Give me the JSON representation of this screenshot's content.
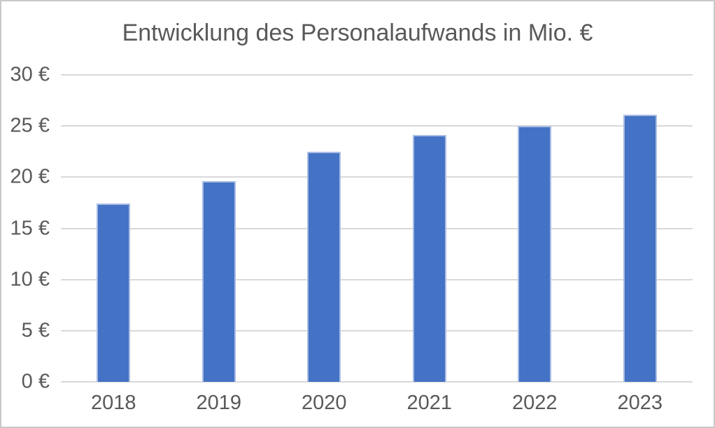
{
  "chart_data": {
    "type": "bar",
    "title": "Entwicklung des Personalaufwands in Mio. €",
    "categories": [
      "2018",
      "2019",
      "2020",
      "2021",
      "2022",
      "2023"
    ],
    "values": [
      17.4,
      19.6,
      22.5,
      24.1,
      25.0,
      26.1
    ],
    "xlabel": "",
    "ylabel": "",
    "ylim": [
      0,
      30
    ],
    "yticks": [
      0,
      5,
      10,
      15,
      20,
      25,
      30
    ],
    "ytick_suffix": " €",
    "grid": true,
    "legend": false,
    "colors": {
      "bar_fill": "#4472C4",
      "bar_border": "#A9BDE4",
      "gridline": "#D9D9D9",
      "axis_line": "#D9D9D9",
      "text": "#595959",
      "background": "#FFFFFF",
      "frame_border": "#C9C9C9"
    }
  }
}
